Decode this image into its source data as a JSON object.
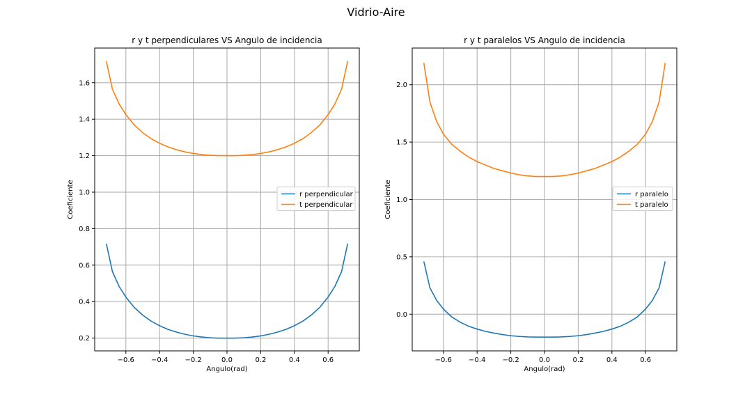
{
  "figure": {
    "suptitle": "Vidrio-Aire"
  },
  "chart_data": [
    {
      "type": "line",
      "title": "r y t perpendiculares VS Angulo de incidencia",
      "xlabel": "Angulo(rad)",
      "ylabel": "Coeficiente",
      "xlim": [
        -0.785,
        0.785
      ],
      "ylim": [
        0.13,
        1.79
      ],
      "xticks": [
        -0.6,
        -0.4,
        -0.2,
        0.0,
        0.2,
        0.4,
        0.6
      ],
      "xtick_labels": [
        "−0.6",
        "−0.4",
        "−0.2",
        "0.0",
        "0.2",
        "0.4",
        "0.6"
      ],
      "yticks": [
        0.2,
        0.4,
        0.6,
        0.8,
        1.0,
        1.2,
        1.4,
        1.6
      ],
      "ytick_labels": [
        "0.2",
        "0.4",
        "0.6",
        "0.8",
        "1.0",
        "1.2",
        "1.4",
        "1.6"
      ],
      "grid": true,
      "legend_position": "center-right",
      "series": [
        {
          "name": "r perpendicular",
          "color": "#1f77b4",
          "x": [
            -0.716,
            -0.68,
            -0.64,
            -0.6,
            -0.55,
            -0.5,
            -0.45,
            -0.4,
            -0.35,
            -0.3,
            -0.25,
            -0.2,
            -0.15,
            -0.1,
            -0.05,
            0.0,
            0.05,
            0.1,
            0.15,
            0.2,
            0.25,
            0.3,
            0.35,
            0.4,
            0.45,
            0.5,
            0.55,
            0.6,
            0.64,
            0.68,
            0.716
          ],
          "y": [
            0.718,
            0.565,
            0.483,
            0.425,
            0.368,
            0.326,
            0.293,
            0.268,
            0.248,
            0.233,
            0.221,
            0.212,
            0.206,
            0.202,
            0.2,
            0.2,
            0.2,
            0.202,
            0.206,
            0.212,
            0.221,
            0.233,
            0.248,
            0.268,
            0.293,
            0.326,
            0.368,
            0.425,
            0.483,
            0.565,
            0.718
          ]
        },
        {
          "name": "t perpendicular",
          "color": "#ff7f0e",
          "x": [
            -0.716,
            -0.68,
            -0.64,
            -0.6,
            -0.55,
            -0.5,
            -0.45,
            -0.4,
            -0.35,
            -0.3,
            -0.25,
            -0.2,
            -0.15,
            -0.1,
            -0.05,
            0.0,
            0.05,
            0.1,
            0.15,
            0.2,
            0.25,
            0.3,
            0.35,
            0.4,
            0.45,
            0.5,
            0.55,
            0.6,
            0.64,
            0.68,
            0.716
          ],
          "y": [
            1.718,
            1.565,
            1.483,
            1.425,
            1.368,
            1.326,
            1.293,
            1.268,
            1.248,
            1.233,
            1.221,
            1.212,
            1.206,
            1.202,
            1.2,
            1.2,
            1.2,
            1.202,
            1.206,
            1.212,
            1.221,
            1.233,
            1.248,
            1.268,
            1.293,
            1.326,
            1.368,
            1.425,
            1.483,
            1.565,
            1.718
          ]
        }
      ]
    },
    {
      "type": "line",
      "title": "r y t paralelos VS Angulo de incidencia",
      "xlabel": "Angulo(rad)",
      "ylabel": "Coeficiente",
      "xlim": [
        -0.785,
        0.785
      ],
      "ylim": [
        -0.32,
        2.32
      ],
      "xticks": [
        -0.6,
        -0.4,
        -0.2,
        0.0,
        0.2,
        0.4,
        0.6
      ],
      "xtick_labels": [
        "−0.6",
        "−0.4",
        "−0.2",
        "0.0",
        "0.2",
        "0.4",
        "0.6"
      ],
      "yticks": [
        0.0,
        0.5,
        1.0,
        1.5,
        2.0
      ],
      "ytick_labels": [
        "0.0",
        "0.5",
        "1.0",
        "1.5",
        "2.0"
      ],
      "grid": true,
      "legend_position": "center-right",
      "series": [
        {
          "name": "r paralelo",
          "color": "#1f77b4",
          "x": [
            -0.716,
            -0.68,
            -0.64,
            -0.6,
            -0.55,
            -0.5,
            -0.45,
            -0.4,
            -0.35,
            -0.3,
            -0.25,
            -0.2,
            -0.15,
            -0.1,
            -0.05,
            0.0,
            0.05,
            0.1,
            0.15,
            0.2,
            0.25,
            0.3,
            0.35,
            0.4,
            0.45,
            0.5,
            0.55,
            0.6,
            0.64,
            0.68,
            0.716
          ],
          "y": [
            0.46,
            0.23,
            0.12,
            0.045,
            -0.025,
            -0.07,
            -0.105,
            -0.13,
            -0.15,
            -0.165,
            -0.178,
            -0.188,
            -0.194,
            -0.198,
            -0.2,
            -0.2,
            -0.2,
            -0.198,
            -0.194,
            -0.188,
            -0.178,
            -0.165,
            -0.15,
            -0.13,
            -0.105,
            -0.07,
            -0.025,
            0.045,
            0.12,
            0.23,
            0.46
          ]
        },
        {
          "name": "t paralelo",
          "color": "#ff7f0e",
          "x": [
            -0.716,
            -0.68,
            -0.64,
            -0.6,
            -0.55,
            -0.5,
            -0.45,
            -0.4,
            -0.35,
            -0.3,
            -0.25,
            -0.2,
            -0.15,
            -0.1,
            -0.05,
            0.0,
            0.05,
            0.1,
            0.15,
            0.2,
            0.25,
            0.3,
            0.35,
            0.4,
            0.45,
            0.5,
            0.55,
            0.6,
            0.64,
            0.68,
            0.716
          ],
          "y": [
            2.19,
            1.85,
            1.68,
            1.57,
            1.48,
            1.42,
            1.37,
            1.33,
            1.3,
            1.27,
            1.25,
            1.23,
            1.215,
            1.205,
            1.2,
            1.2,
            1.2,
            1.205,
            1.215,
            1.23,
            1.25,
            1.27,
            1.3,
            1.33,
            1.37,
            1.42,
            1.48,
            1.57,
            1.68,
            1.85,
            2.19
          ]
        }
      ]
    }
  ]
}
